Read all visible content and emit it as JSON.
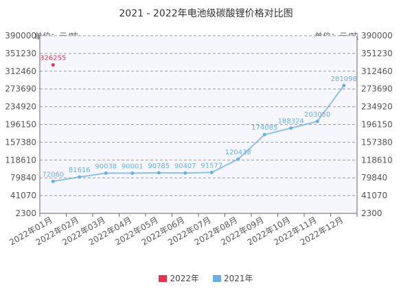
{
  "chart_data": {
    "type": "line",
    "title": "2021 - 2022年电池级碳酸锂价格对比图",
    "unit_left": "单位：元/吨",
    "unit_right": "单位：元/吨",
    "categories": [
      "2022年01月",
      "2022年02月",
      "2022年03月",
      "2022年04月",
      "2022年05月",
      "2022年06月",
      "2022年07月",
      "2022年08月",
      "2022年09月",
      "2022年10月",
      "2022年11月",
      "2022年12月"
    ],
    "y_ticks": [
      2300,
      41070,
      79840,
      118610,
      157380,
      196150,
      234920,
      273690,
      312460,
      351230,
      390000
    ],
    "y_tick_labels": [
      "2300",
      "41070",
      "79840",
      "118610",
      "157380",
      "196150",
      "234920",
      "273690",
      "312460",
      "351230",
      "390000"
    ],
    "ylim": [
      2300,
      390000
    ],
    "grid": "horizontal dashed",
    "legend_placement": "bottom",
    "series": [
      {
        "name": "2022年",
        "color": "#e8334a",
        "values": [
          326255,
          null,
          null,
          null,
          null,
          null,
          null,
          null,
          null,
          null,
          null,
          null
        ],
        "labels": [
          "326255",
          "",
          "",
          "",
          "",
          "",
          "",
          "",
          "",
          "",
          "",
          ""
        ]
      },
      {
        "name": "2021年",
        "color": "#6aaee6",
        "values": [
          72060,
          81616,
          90038,
          90001,
          90785,
          90407,
          91577,
          120438,
          174085,
          188324,
          203050,
          281098
        ],
        "labels": [
          "72060",
          "81616",
          "90038",
          "90001",
          "90785",
          "90407",
          "91577",
          "120438",
          "174085",
          "188324",
          "203050",
          "281098"
        ]
      }
    ]
  }
}
